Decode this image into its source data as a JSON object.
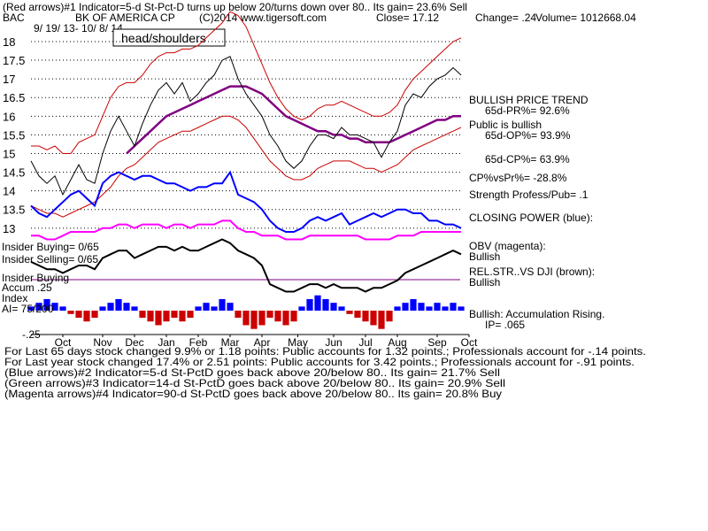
{
  "chart_data": {
    "type": "stock",
    "title": "(Red arrows)#1 Indicator=5-d St-Pct-D turns up below 20/turns down over 80.. Its gain= 23.6% Sell",
    "ticker": "BAC",
    "company": "BK OF AMERICA CP",
    "source": "(C)2014 www.tigersoft.com",
    "close": "Close=  17.12",
    "change": "Change= .24",
    "volume": "Volume= 1012668.04",
    "date_range": "9/ 19/ 13- 10/ 8/ 14",
    "pattern_label": "head/shoulders",
    "right_labels": [
      "BULLISH PRICE TREND",
      "65d-PR%= 92.6%",
      "Public is bullish",
      "65d-OP%= 93.9%",
      "65d-CP%= 63.9%",
      "CP%vsPr%= -28.8%",
      "Strength Profess/Pub= .1",
      "CLOSING POWER (blue):",
      "OBV (magenta):",
      "Bullish",
      "REL.STR..VS DJI (brown):",
      "Bullish",
      "Bullish: Accumulation Rising.",
      "IP=  .065"
    ],
    "left_labels": [
      "Insider Buying= 0/65",
      "Insider Selling= 0/65",
      "Insider Buying",
      "Accum .25",
      "Index",
      "AI= 75/200",
      "-.25"
    ],
    "footer": [
      "For Last 65 days stock changed  9.9% or  1.18 points:  Public accounts for  1.32 points.;  Professionals account for -.14 points.",
      "For Last year stock changed  17.4% or  2.51 points:  Public accounts for  3.42 points.;  Professionals account for -.91 points.",
      "(Blue arrows)#2 Indicator=5-d St-PctD goes back above 20/below 80.. Its gain= 21.7% Sell",
      "(Green arrows)#3 Indicator=14-d St-PctD goes back above 20/below 80.. Its gain= 20.9% Sell",
      "(Magenta arrows)#4 Indicator=90-d St-PctD goes back above 20/below 80.. Its gain= 20.8% Buy"
    ],
    "xlim": [
      0,
      55
    ],
    "xticks": [
      {
        "value": 4,
        "label": "Oct"
      },
      {
        "value": 9,
        "label": "Nov"
      },
      {
        "value": 13,
        "label": "Dec"
      },
      {
        "value": 17,
        "label": "Jan"
      },
      {
        "value": 21,
        "label": "Feb"
      },
      {
        "value": 25,
        "label": "Mar"
      },
      {
        "value": 29,
        "label": "Apr"
      },
      {
        "value": 33.5,
        "label": "May"
      },
      {
        "value": 38,
        "label": "Jun"
      },
      {
        "value": 42,
        "label": "Jul"
      },
      {
        "value": 46,
        "label": "Aug"
      },
      {
        "value": 51,
        "label": "Sep"
      },
      {
        "value": 55,
        "label": "Oct"
      }
    ],
    "ylim": [
      10.15,
      18.45
    ],
    "yticks": [
      13,
      13.5,
      14,
      14.5,
      15,
      15.5,
      16,
      16.5,
      17,
      17.5,
      18
    ],
    "grid": true,
    "series": [
      {
        "color": "#cc0000",
        "kind": "line",
        "values": [
          15.2,
          15.2,
          15.1,
          15.2,
          15.0,
          15.0,
          15.3,
          15.4,
          15.5,
          16.0,
          16.5,
          16.8,
          16.9,
          16.9,
          17.1,
          17.4,
          17.6,
          17.7,
          17.7,
          17.8,
          17.8,
          17.9,
          18.1,
          18.3,
          18.5,
          18.8,
          18.7,
          18.4,
          17.9,
          17.4,
          16.9,
          16.5,
          16.2,
          16.0,
          15.9,
          16.0,
          16.2,
          16.3,
          16.3,
          16.4,
          16.3,
          16.2,
          16.1,
          16.0,
          16.0,
          16.1,
          16.3,
          16.7,
          17.0,
          17.2,
          17.4,
          17.6,
          17.8,
          18.0,
          18.1
        ]
      },
      {
        "color": "#cc0000",
        "kind": "line",
        "values": [
          13.6,
          13.5,
          13.4,
          13.4,
          13.3,
          13.4,
          13.5,
          13.6,
          13.7,
          13.9,
          14.1,
          14.4,
          14.6,
          14.7,
          14.9,
          15.1,
          15.3,
          15.4,
          15.5,
          15.6,
          15.6,
          15.7,
          15.8,
          15.9,
          16.0,
          16.0,
          15.9,
          15.7,
          15.4,
          15.1,
          14.8,
          14.6,
          14.4,
          14.3,
          14.3,
          14.4,
          14.6,
          14.7,
          14.8,
          14.8,
          14.8,
          14.7,
          14.6,
          14.6,
          14.5,
          14.6,
          14.7,
          14.9,
          15.1,
          15.2,
          15.3,
          15.4,
          15.5,
          15.6,
          15.7
        ]
      },
      {
        "color": "#800080",
        "kind": "line",
        "width": 2.5,
        "values": [
          null,
          null,
          null,
          null,
          null,
          null,
          null,
          null,
          null,
          null,
          null,
          null,
          15.0,
          15.2,
          15.4,
          15.6,
          15.8,
          16.0,
          16.1,
          16.2,
          16.3,
          16.4,
          16.5,
          16.6,
          16.7,
          16.8,
          16.8,
          16.8,
          16.7,
          16.6,
          16.4,
          16.2,
          16.0,
          15.9,
          15.8,
          15.7,
          15.6,
          15.6,
          15.5,
          15.5,
          15.4,
          15.4,
          15.3,
          15.3,
          15.3,
          15.3,
          15.4,
          15.5,
          15.6,
          15.7,
          15.8,
          15.9,
          15.9,
          16.0,
          16.0
        ]
      },
      {
        "color": "#000000",
        "kind": "line",
        "values": [
          14.8,
          14.4,
          14.2,
          14.4,
          13.9,
          14.3,
          14.7,
          14.3,
          14.2,
          15.0,
          15.6,
          16.0,
          15.6,
          15.2,
          15.8,
          16.3,
          16.7,
          16.9,
          16.6,
          16.9,
          16.4,
          16.6,
          16.9,
          17.1,
          17.5,
          17.6,
          17.0,
          16.6,
          16.3,
          16.0,
          15.5,
          15.2,
          14.8,
          14.6,
          14.8,
          15.2,
          15.5,
          15.5,
          15.4,
          15.7,
          15.5,
          15.5,
          15.4,
          15.3,
          14.9,
          15.3,
          15.6,
          16.3,
          16.6,
          16.5,
          16.8,
          17.0,
          17.1,
          17.3,
          17.1
        ]
      },
      {
        "color": "#0000ff",
        "kind": "line",
        "width": 2,
        "values": [
          13.6,
          13.4,
          13.3,
          13.5,
          13.7,
          13.9,
          14.0,
          13.8,
          13.6,
          14.2,
          14.4,
          14.5,
          14.4,
          14.3,
          14.4,
          14.4,
          14.3,
          14.2,
          14.2,
          14.1,
          14.0,
          14.1,
          14.1,
          14.2,
          14.2,
          14.5,
          13.9,
          13.8,
          13.7,
          13.5,
          13.2,
          13.0,
          12.9,
          12.9,
          13.0,
          13.2,
          13.3,
          13.2,
          13.3,
          13.4,
          13.1,
          13.2,
          13.3,
          13.4,
          13.3,
          13.4,
          13.5,
          13.5,
          13.4,
          13.4,
          13.2,
          13.2,
          13.1,
          13.1,
          13.0
        ]
      },
      {
        "color": "#ff00ff",
        "kind": "line",
        "width": 2,
        "values": [
          12.8,
          12.8,
          12.7,
          12.7,
          12.8,
          12.9,
          12.9,
          12.9,
          12.9,
          13.0,
          13.0,
          13.1,
          13.1,
          13.0,
          13.1,
          13.1,
          13.1,
          13.0,
          13.1,
          13.1,
          13.0,
          13.1,
          13.1,
          13.1,
          13.2,
          13.2,
          13.0,
          12.9,
          12.9,
          12.8,
          12.8,
          12.8,
          12.7,
          12.7,
          12.7,
          12.8,
          12.8,
          12.8,
          12.8,
          12.8,
          12.8,
          12.8,
          12.7,
          12.7,
          12.7,
          12.7,
          12.8,
          12.8,
          12.8,
          12.9,
          12.9,
          12.9,
          12.9,
          12.9,
          12.9
        ]
      },
      {
        "color": "#000000",
        "kind": "line",
        "width": 2,
        "values": [
          12.1,
          12.0,
          11.9,
          11.9,
          11.8,
          11.9,
          12.0,
          12.0,
          11.9,
          12.2,
          12.3,
          12.4,
          12.4,
          12.2,
          12.3,
          12.4,
          12.5,
          12.5,
          12.4,
          12.5,
          12.4,
          12.4,
          12.5,
          12.6,
          12.7,
          12.6,
          12.4,
          12.3,
          12.2,
          12.0,
          11.5,
          11.4,
          11.3,
          11.3,
          11.4,
          11.5,
          11.5,
          11.4,
          11.5,
          11.4,
          11.4,
          11.4,
          11.3,
          11.4,
          11.4,
          11.5,
          11.6,
          11.8,
          11.9,
          12.0,
          12.1,
          12.2,
          12.3,
          12.4,
          12.3
        ]
      },
      {
        "color": "#0000ff",
        "color2": "#cc0000",
        "kind": "histogram",
        "values": [
          10.9,
          11.0,
          11.1,
          11.0,
          10.9,
          10.7,
          10.6,
          10.5,
          10.6,
          10.9,
          11.0,
          11.1,
          11.0,
          10.9,
          10.6,
          10.5,
          10.4,
          10.5,
          10.6,
          10.5,
          10.6,
          10.9,
          11.0,
          10.9,
          11.1,
          11.0,
          10.6,
          10.4,
          10.3,
          10.4,
          10.6,
          10.5,
          10.4,
          10.5,
          10.9,
          11.1,
          11.2,
          11.1,
          11.0,
          10.9,
          10.7,
          10.6,
          10.5,
          10.4,
          10.3,
          10.5,
          10.9,
          11.0,
          11.1,
          11.0,
          10.9,
          11.0,
          10.9,
          11.0,
          10.9
        ]
      }
    ]
  }
}
